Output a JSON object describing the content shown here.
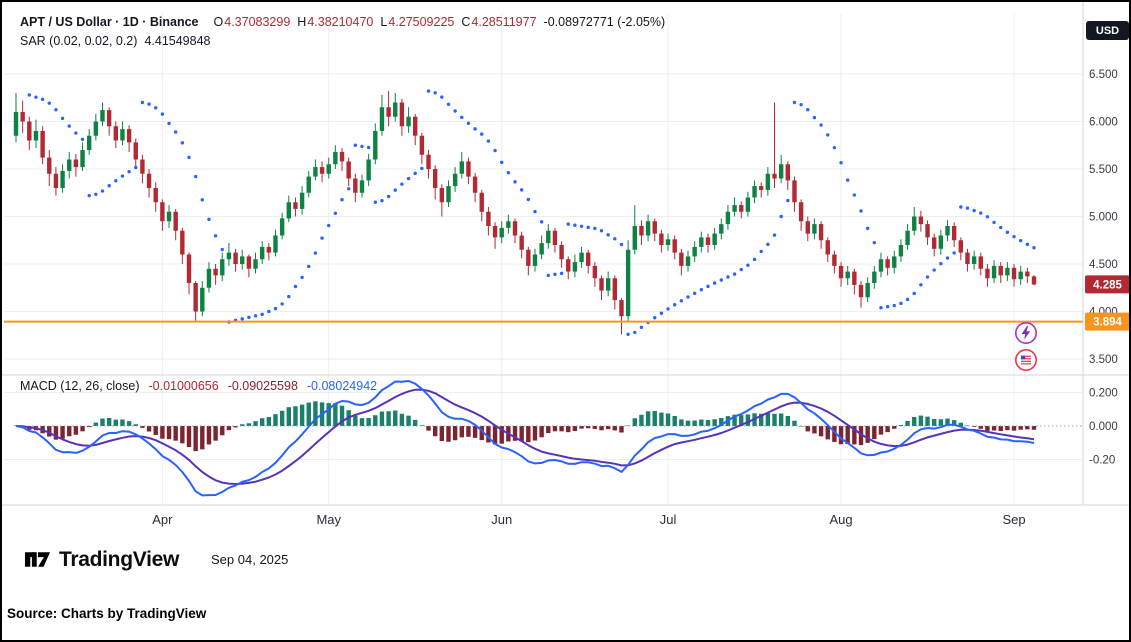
{
  "header": {
    "title": "APT / US Dollar · 1D · Binance",
    "ohlc": {
      "o_label": "O",
      "o": "4.37083299",
      "h_label": "H",
      "h": "4.38210470",
      "l_label": "L",
      "l": "4.27509225",
      "c_label": "C",
      "c": "4.28511977",
      "change": "-0.08972771 (-2.05%)"
    }
  },
  "sar_legend": {
    "label": "SAR (0.02, 0.02, 0.2)",
    "value": "4.41549848"
  },
  "macd_legend": {
    "label": "MACD (12, 26, close)",
    "hist": "-0.01000656",
    "macd": "-0.09025598",
    "signal": "-0.08024942"
  },
  "currency_button": "USD",
  "footer": {
    "brand": "TradingView",
    "date": "Sep 04, 2025"
  },
  "source_line": "Source: Charts by TradingView",
  "colors": {
    "up": "#0E8243",
    "down": "#B22833",
    "sar_dots": "#2962FF",
    "level_line": "#F7941C",
    "macd_line": "#2962FF",
    "signal_line": "#5633B8",
    "hist_up": "#1A7F6B",
    "hist_down": "#7E2430",
    "grid": "#ECEEF2",
    "axis_text": "#363A45",
    "divider": "#D1D4DC",
    "badge_text": "#FFFFFF"
  },
  "chart_data": {
    "type": "candlestick",
    "symbol": "APT / US Dollar",
    "interval": "1D",
    "exchange": "Binance",
    "legend_ohlc": {
      "open": 4.37083299,
      "high": 4.3821047,
      "low": 4.27509225,
      "close": 4.28511977,
      "change": -0.08972771,
      "change_pct": -2.05
    },
    "price_ticks": [
      {
        "v": 6.5,
        "label": "6.500"
      },
      {
        "v": 6.0,
        "label": "6.000"
      },
      {
        "v": 5.5,
        "label": "5.500"
      },
      {
        "v": 5.0,
        "label": "5.000"
      },
      {
        "v": 4.5,
        "label": "4.500"
      },
      {
        "v": 4.0,
        "label": "4.000"
      },
      {
        "v": 3.5,
        "label": "3.500"
      }
    ],
    "macd_ticks": [
      {
        "v": 0.2,
        "label": "0.200"
      },
      {
        "v": 0.0,
        "label": "0.000"
      },
      {
        "v": -0.2,
        "label": "-0.20"
      }
    ],
    "months": [
      {
        "label": "Apr",
        "i": 22
      },
      {
        "label": "May",
        "i": 47
      },
      {
        "label": "Jun",
        "i": 73
      },
      {
        "label": "Jul",
        "i": 98
      },
      {
        "label": "Aug",
        "i": 124
      },
      {
        "label": "Sep",
        "i": 150
      }
    ],
    "level_line": 3.894,
    "level_label": "3.894",
    "last_price": 4.285,
    "last_price_label": "4.285",
    "sar_params": {
      "start": 0.02,
      "increment": 0.02,
      "max": 0.2,
      "current": 4.41549848
    },
    "macd_params": {
      "fast": 12,
      "slow": 26,
      "signal": 9,
      "source": "close",
      "current_hist": -0.01000656,
      "current_macd": -0.09025598,
      "current_signal": -0.08024942
    },
    "price_range": [
      3.45,
      6.6
    ],
    "candles": [
      [
        5.85,
        6.3,
        5.78,
        6.1
      ],
      [
        6.1,
        6.22,
        5.88,
        6.0
      ],
      [
        6.0,
        6.05,
        5.7,
        5.8
      ],
      [
        5.8,
        6.02,
        5.72,
        5.9
      ],
      [
        5.9,
        5.95,
        5.55,
        5.62
      ],
      [
        5.62,
        5.7,
        5.32,
        5.45
      ],
      [
        5.45,
        5.52,
        5.22,
        5.3
      ],
      [
        5.3,
        5.55,
        5.25,
        5.48
      ],
      [
        5.48,
        5.68,
        5.4,
        5.6
      ],
      [
        5.6,
        5.66,
        5.42,
        5.52
      ],
      [
        5.52,
        5.78,
        5.48,
        5.7
      ],
      [
        5.7,
        5.92,
        5.65,
        5.85
      ],
      [
        5.85,
        6.08,
        5.8,
        6.0
      ],
      [
        6.0,
        6.2,
        5.95,
        6.12
      ],
      [
        6.12,
        6.15,
        5.85,
        5.95
      ],
      [
        5.95,
        6.0,
        5.72,
        5.8
      ],
      [
        5.8,
        6.0,
        5.75,
        5.92
      ],
      [
        5.92,
        5.96,
        5.68,
        5.78
      ],
      [
        5.78,
        5.82,
        5.52,
        5.6
      ],
      [
        5.6,
        5.65,
        5.35,
        5.45
      ],
      [
        5.45,
        5.5,
        5.2,
        5.3
      ],
      [
        5.3,
        5.36,
        5.05,
        5.15
      ],
      [
        5.15,
        5.18,
        4.85,
        4.95
      ],
      [
        4.95,
        5.12,
        4.88,
        5.05
      ],
      [
        5.05,
        5.08,
        4.75,
        4.85
      ],
      [
        4.85,
        4.88,
        4.5,
        4.6
      ],
      [
        4.6,
        4.62,
        4.18,
        4.3
      ],
      [
        4.3,
        4.32,
        3.89,
        4.0
      ],
      [
        4.0,
        4.32,
        3.95,
        4.25
      ],
      [
        4.25,
        4.52,
        4.2,
        4.45
      ],
      [
        4.45,
        4.5,
        4.28,
        4.38
      ],
      [
        4.38,
        4.62,
        4.32,
        4.55
      ],
      [
        4.55,
        4.72,
        4.48,
        4.62
      ],
      [
        4.62,
        4.66,
        4.42,
        4.5
      ],
      [
        4.5,
        4.65,
        4.44,
        4.58
      ],
      [
        4.58,
        4.6,
        4.36,
        4.45
      ],
      [
        4.45,
        4.62,
        4.4,
        4.55
      ],
      [
        4.55,
        4.74,
        4.5,
        4.68
      ],
      [
        4.68,
        4.72,
        4.54,
        4.62
      ],
      [
        4.62,
        4.86,
        4.58,
        4.8
      ],
      [
        4.8,
        5.04,
        4.76,
        4.98
      ],
      [
        4.98,
        5.22,
        4.94,
        5.15
      ],
      [
        5.15,
        5.2,
        5.0,
        5.08
      ],
      [
        5.08,
        5.32,
        5.02,
        5.25
      ],
      [
        5.25,
        5.48,
        5.2,
        5.42
      ],
      [
        5.42,
        5.6,
        5.38,
        5.52
      ],
      [
        5.52,
        5.58,
        5.36,
        5.45
      ],
      [
        5.45,
        5.62,
        5.4,
        5.55
      ],
      [
        5.55,
        5.75,
        5.5,
        5.68
      ],
      [
        5.68,
        5.72,
        5.48,
        5.58
      ],
      [
        5.58,
        5.62,
        5.32,
        5.4
      ],
      [
        5.4,
        5.45,
        5.15,
        5.25
      ],
      [
        5.25,
        5.44,
        5.2,
        5.38
      ],
      [
        5.38,
        5.66,
        5.32,
        5.6
      ],
      [
        5.6,
        5.98,
        5.55,
        5.9
      ],
      [
        5.9,
        6.28,
        5.85,
        6.15
      ],
      [
        6.15,
        6.32,
        5.95,
        6.05
      ],
      [
        6.05,
        6.3,
        6.0,
        6.2
      ],
      [
        6.2,
        6.24,
        5.85,
        5.95
      ],
      [
        5.95,
        6.15,
        5.88,
        6.05
      ],
      [
        6.05,
        6.08,
        5.75,
        5.85
      ],
      [
        5.85,
        5.88,
        5.55,
        5.65
      ],
      [
        5.65,
        5.7,
        5.4,
        5.5
      ],
      [
        5.5,
        5.54,
        5.18,
        5.3
      ],
      [
        5.3,
        5.34,
        5.0,
        5.15
      ],
      [
        5.15,
        5.38,
        5.1,
        5.32
      ],
      [
        5.32,
        5.52,
        5.26,
        5.45
      ],
      [
        5.45,
        5.68,
        5.4,
        5.58
      ],
      [
        5.58,
        5.62,
        5.34,
        5.42
      ],
      [
        5.42,
        5.46,
        5.15,
        5.25
      ],
      [
        5.25,
        5.28,
        4.95,
        5.05
      ],
      [
        5.05,
        5.1,
        4.8,
        4.9
      ],
      [
        4.9,
        4.94,
        4.66,
        4.78
      ],
      [
        4.78,
        4.95,
        4.72,
        4.88
      ],
      [
        4.88,
        5.02,
        4.82,
        4.95
      ],
      [
        4.95,
        4.98,
        4.72,
        4.8
      ],
      [
        4.8,
        4.84,
        4.56,
        4.65
      ],
      [
        4.65,
        4.68,
        4.38,
        4.48
      ],
      [
        4.48,
        4.66,
        4.42,
        4.6
      ],
      [
        4.6,
        4.8,
        4.55,
        4.72
      ],
      [
        4.72,
        4.92,
        4.66,
        4.85
      ],
      [
        4.85,
        4.88,
        4.62,
        4.7
      ],
      [
        4.7,
        4.74,
        4.46,
        4.55
      ],
      [
        4.55,
        4.58,
        4.34,
        4.42
      ],
      [
        4.42,
        4.6,
        4.36,
        4.52
      ],
      [
        4.52,
        4.68,
        4.46,
        4.62
      ],
      [
        4.62,
        4.65,
        4.4,
        4.48
      ],
      [
        4.48,
        4.52,
        4.26,
        4.35
      ],
      [
        4.35,
        4.38,
        4.12,
        4.22
      ],
      [
        4.22,
        4.42,
        4.16,
        4.35
      ],
      [
        4.35,
        4.38,
        4.02,
        4.12
      ],
      [
        4.12,
        4.14,
        3.76,
        3.95
      ],
      [
        3.95,
        4.75,
        3.9,
        4.65
      ],
      [
        4.65,
        5.12,
        4.6,
        4.9
      ],
      [
        4.9,
        4.96,
        4.7,
        4.8
      ],
      [
        4.8,
        5.02,
        4.74,
        4.95
      ],
      [
        4.95,
        4.98,
        4.74,
        4.82
      ],
      [
        4.82,
        4.86,
        4.62,
        4.7
      ],
      [
        4.7,
        4.82,
        4.64,
        4.76
      ],
      [
        4.76,
        4.8,
        4.55,
        4.62
      ],
      [
        4.62,
        4.66,
        4.38,
        4.48
      ],
      [
        4.48,
        4.64,
        4.42,
        4.58
      ],
      [
        4.58,
        4.74,
        4.52,
        4.68
      ],
      [
        4.68,
        4.84,
        4.62,
        4.78
      ],
      [
        4.78,
        4.82,
        4.62,
        4.7
      ],
      [
        4.7,
        4.88,
        4.65,
        4.82
      ],
      [
        4.82,
        4.98,
        4.76,
        4.92
      ],
      [
        4.92,
        5.12,
        4.86,
        5.05
      ],
      [
        5.05,
        5.2,
        5.0,
        5.12
      ],
      [
        5.12,
        5.16,
        4.98,
        5.05
      ],
      [
        5.05,
        5.26,
        5.0,
        5.2
      ],
      [
        5.2,
        5.38,
        5.14,
        5.32
      ],
      [
        5.32,
        5.36,
        5.2,
        5.28
      ],
      [
        5.28,
        5.52,
        5.22,
        5.45
      ],
      [
        5.45,
        6.2,
        5.3,
        5.4
      ],
      [
        5.4,
        5.65,
        5.35,
        5.55
      ],
      [
        5.55,
        5.58,
        5.28,
        5.38
      ],
      [
        5.38,
        5.42,
        5.05,
        5.15
      ],
      [
        5.15,
        5.18,
        4.85,
        4.95
      ],
      [
        4.95,
        5.0,
        4.74,
        4.82
      ],
      [
        4.82,
        4.98,
        4.76,
        4.92
      ],
      [
        4.92,
        4.95,
        4.66,
        4.75
      ],
      [
        4.75,
        4.78,
        4.52,
        4.6
      ],
      [
        4.6,
        4.64,
        4.4,
        4.48
      ],
      [
        4.48,
        4.52,
        4.26,
        4.35
      ],
      [
        4.35,
        4.48,
        4.28,
        4.42
      ],
      [
        4.42,
        4.45,
        4.18,
        4.28
      ],
      [
        4.28,
        4.32,
        4.04,
        4.15
      ],
      [
        4.15,
        4.36,
        4.1,
        4.3
      ],
      [
        4.3,
        4.48,
        4.24,
        4.42
      ],
      [
        4.42,
        4.62,
        4.36,
        4.55
      ],
      [
        4.55,
        4.58,
        4.38,
        4.46
      ],
      [
        4.46,
        4.64,
        4.4,
        4.58
      ],
      [
        4.58,
        4.76,
        4.52,
        4.7
      ],
      [
        4.7,
        4.92,
        4.65,
        4.85
      ],
      [
        4.85,
        5.1,
        4.8,
        5.0
      ],
      [
        5.0,
        5.06,
        4.84,
        4.92
      ],
      [
        4.92,
        4.96,
        4.7,
        4.78
      ],
      [
        4.78,
        4.82,
        4.58,
        4.66
      ],
      [
        4.66,
        4.86,
        4.6,
        4.8
      ],
      [
        4.8,
        4.96,
        4.74,
        4.9
      ],
      [
        4.9,
        4.94,
        4.68,
        4.75
      ],
      [
        4.75,
        4.78,
        4.54,
        4.62
      ],
      [
        4.62,
        4.66,
        4.42,
        4.5
      ],
      [
        4.5,
        4.64,
        4.44,
        4.58
      ],
      [
        4.58,
        4.62,
        4.38,
        4.45
      ],
      [
        4.45,
        4.5,
        4.26,
        4.35
      ],
      [
        4.35,
        4.54,
        4.3,
        4.48
      ],
      [
        4.48,
        4.52,
        4.3,
        4.38
      ],
      [
        4.38,
        4.52,
        4.32,
        4.46
      ],
      [
        4.46,
        4.5,
        4.26,
        4.34
      ],
      [
        4.34,
        4.48,
        4.28,
        4.42
      ],
      [
        4.42,
        4.46,
        4.3,
        4.37
      ],
      [
        4.37,
        4.382,
        4.275,
        4.285
      ]
    ]
  }
}
